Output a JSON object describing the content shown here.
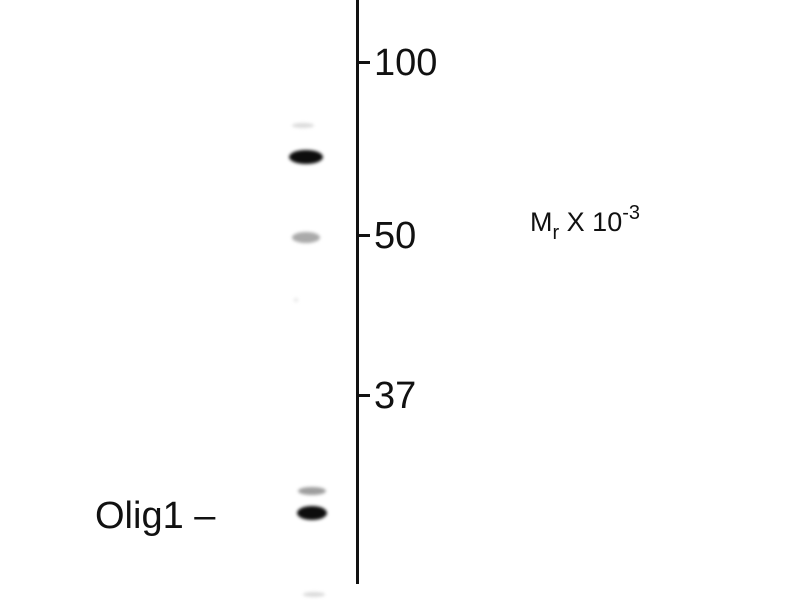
{
  "marker_axis": {
    "markers": [
      {
        "label": "100",
        "mr_kda": 100
      },
      {
        "label": "50",
        "mr_kda": 50
      },
      {
        "label": "37",
        "mr_kda": 37
      }
    ],
    "unit_label": {
      "base": "M",
      "subscript": "r",
      "middle": " X 10",
      "superscript": "-3"
    }
  },
  "band_label": {
    "text": "Olig1 –"
  },
  "lane": {
    "bands": [
      {
        "intensity": 0.15
      },
      {
        "intensity": 1.0
      },
      {
        "intensity": 0.35
      },
      {
        "intensity": 0.1
      },
      {
        "intensity": 0.4
      },
      {
        "intensity": 1.0
      },
      {
        "intensity": 0.15
      }
    ]
  }
}
